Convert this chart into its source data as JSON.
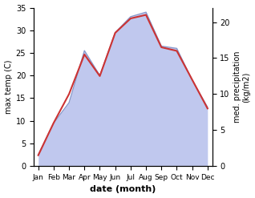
{
  "months": [
    "Jan",
    "Feb",
    "Mar",
    "Apr",
    "May",
    "Jun",
    "Jul",
    "Aug",
    "Sep",
    "Oct",
    "Nov",
    "Dec"
  ],
  "month_x": [
    0,
    1,
    2,
    3,
    4,
    5,
    6,
    7,
    8,
    9,
    10,
    11
  ],
  "temp_max": [
    2.5,
    9.5,
    14.0,
    25.5,
    20.0,
    29.5,
    33.0,
    34.0,
    26.5,
    26.0,
    19.0,
    13.0
  ],
  "precip": [
    1.5,
    6.0,
    10.0,
    15.5,
    12.5,
    18.5,
    20.5,
    21.0,
    16.5,
    16.0,
    12.0,
    8.0
  ],
  "temp_color": "#cc3333",
  "precip_fill_color": "#c0c8ee",
  "precip_line_color": "#8899cc",
  "temp_ylim": [
    0,
    35
  ],
  "precip_ylim": [
    0,
    22
  ],
  "temp_yticks": [
    0,
    5,
    10,
    15,
    20,
    25,
    30,
    35
  ],
  "precip_yticks": [
    0,
    5,
    10,
    15,
    20
  ],
  "xlabel": "date (month)",
  "ylabel_left": "max temp (C)",
  "ylabel_right": "med. precipitation\n(kg/m2)",
  "bg_color": "#ffffff"
}
